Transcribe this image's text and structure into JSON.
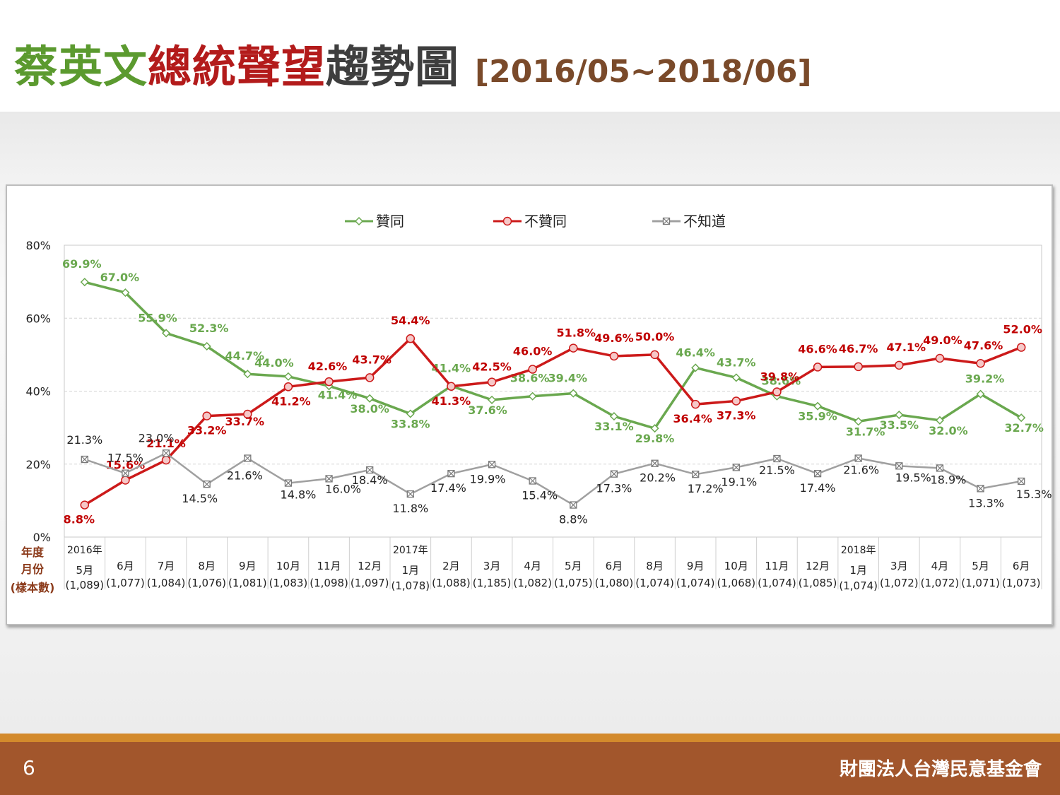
{
  "title": {
    "parts": [
      {
        "text": "蔡英文",
        "color": "#5b9a2f"
      },
      {
        "text": "總統聲望",
        "color": "#b31b1b"
      },
      {
        "text": "趨勢圖",
        "color": "#3e3e3e"
      }
    ],
    "date_range": "[2016/05~2018/06]"
  },
  "footer": {
    "page_number": "6",
    "organization": "財團法人台灣民意基金會"
  },
  "chart_data": {
    "type": "line",
    "ylim": [
      0,
      80
    ],
    "yticks": [
      "0%",
      "20%",
      "40%",
      "60%",
      "80%"
    ],
    "grid": true,
    "legend_position": "top-center",
    "row_labels": [
      "年度",
      "月份",
      "(樣本數)"
    ],
    "years": [
      {
        "index": 0,
        "label": "2016年"
      },
      {
        "index": 8,
        "label": "2017年"
      },
      {
        "index": 19,
        "label": "2018年"
      }
    ],
    "months": [
      "5月",
      "6月",
      "7月",
      "8月",
      "9月",
      "10月",
      "11月",
      "12月",
      "1月",
      "2月",
      "3月",
      "4月",
      "5月",
      "6月",
      "8月",
      "9月",
      "10月",
      "11月",
      "12月",
      "1月",
      "3月",
      "4月",
      "5月",
      "6月"
    ],
    "samples": [
      "(1,089)",
      "(1,077)",
      "(1,084)",
      "(1,076)",
      "(1,081)",
      "(1,083)",
      "(1,098)",
      "(1,097)",
      "(1,078)",
      "(1,088)",
      "(1,185)",
      "(1,082)",
      "(1,075)",
      "(1,080)",
      "(1,074)",
      "(1,074)",
      "(1,068)",
      "(1,074)",
      "(1,085)",
      "(1,074)",
      "(1,072)",
      "(1,072)",
      "(1,071)",
      "(1,073)"
    ],
    "series": [
      {
        "name": "贊同",
        "color": "#6aa84f",
        "marker": "diamond",
        "values": [
          69.9,
          67.0,
          55.9,
          52.3,
          44.7,
          44.0,
          41.4,
          38.0,
          33.8,
          41.4,
          37.6,
          38.6,
          39.4,
          33.1,
          29.8,
          46.4,
          43.7,
          38.6,
          35.9,
          31.7,
          33.5,
          32.0,
          39.2,
          32.7
        ],
        "labels": [
          "69.9%",
          "67.0%",
          "55.9%",
          "52.3%",
          "44.7%",
          "44.0%",
          "41.4%",
          "38.0%",
          "33.8%",
          "41.4%",
          "37.6%",
          "38.6%",
          "39.4%",
          "33.1%",
          "29.8%",
          "46.4%",
          "43.7%",
          "38.6%",
          "35.9%",
          "31.7%",
          "33.5%",
          "32.0%",
          "39.2%",
          "32.7%"
        ]
      },
      {
        "name": "不贊同",
        "color": "#cc1a1a",
        "marker": "circle",
        "values": [
          8.8,
          15.6,
          21.1,
          33.2,
          33.7,
          41.2,
          42.6,
          43.7,
          54.4,
          41.3,
          42.5,
          46.0,
          51.8,
          49.6,
          50.0,
          36.4,
          37.3,
          39.8,
          46.6,
          46.7,
          47.1,
          49.0,
          47.6,
          52.0
        ],
        "labels": [
          "8.8%",
          "15.6%",
          "21.1%",
          "33.2%",
          "33.7%",
          "41.2%",
          "42.6%",
          "43.7%",
          "54.4%",
          "41.3%",
          "42.5%",
          "46.0%",
          "51.8%",
          "49.6%",
          "50.0%",
          "36.4%",
          "37.3%",
          "39.8%",
          "46.6%",
          "46.7%",
          "47.1%",
          "49.0%",
          "47.6%",
          "52.0%"
        ]
      },
      {
        "name": "不知道",
        "color": "#a0a0a0",
        "marker": "box-x",
        "values": [
          21.3,
          17.5,
          23.0,
          14.5,
          21.6,
          14.8,
          16.0,
          18.4,
          11.8,
          17.4,
          19.9,
          15.4,
          8.8,
          17.3,
          20.2,
          17.2,
          19.1,
          21.5,
          17.4,
          21.6,
          19.5,
          18.9,
          13.3,
          15.3
        ],
        "labels": [
          "21.3%",
          "17.5%",
          "23.0%",
          "14.5%",
          "21.6%",
          "14.8%",
          "16.0%",
          "18.4%",
          "11.8%",
          "17.4%",
          "19.9%",
          "15.4%",
          "8.8%",
          "17.3%",
          "20.2%",
          "17.2%",
          "19.1%",
          "21.5%",
          "17.4%",
          "21.6%",
          "19.5%",
          "18.9%",
          "13.3%",
          "15.3%"
        ]
      }
    ]
  }
}
